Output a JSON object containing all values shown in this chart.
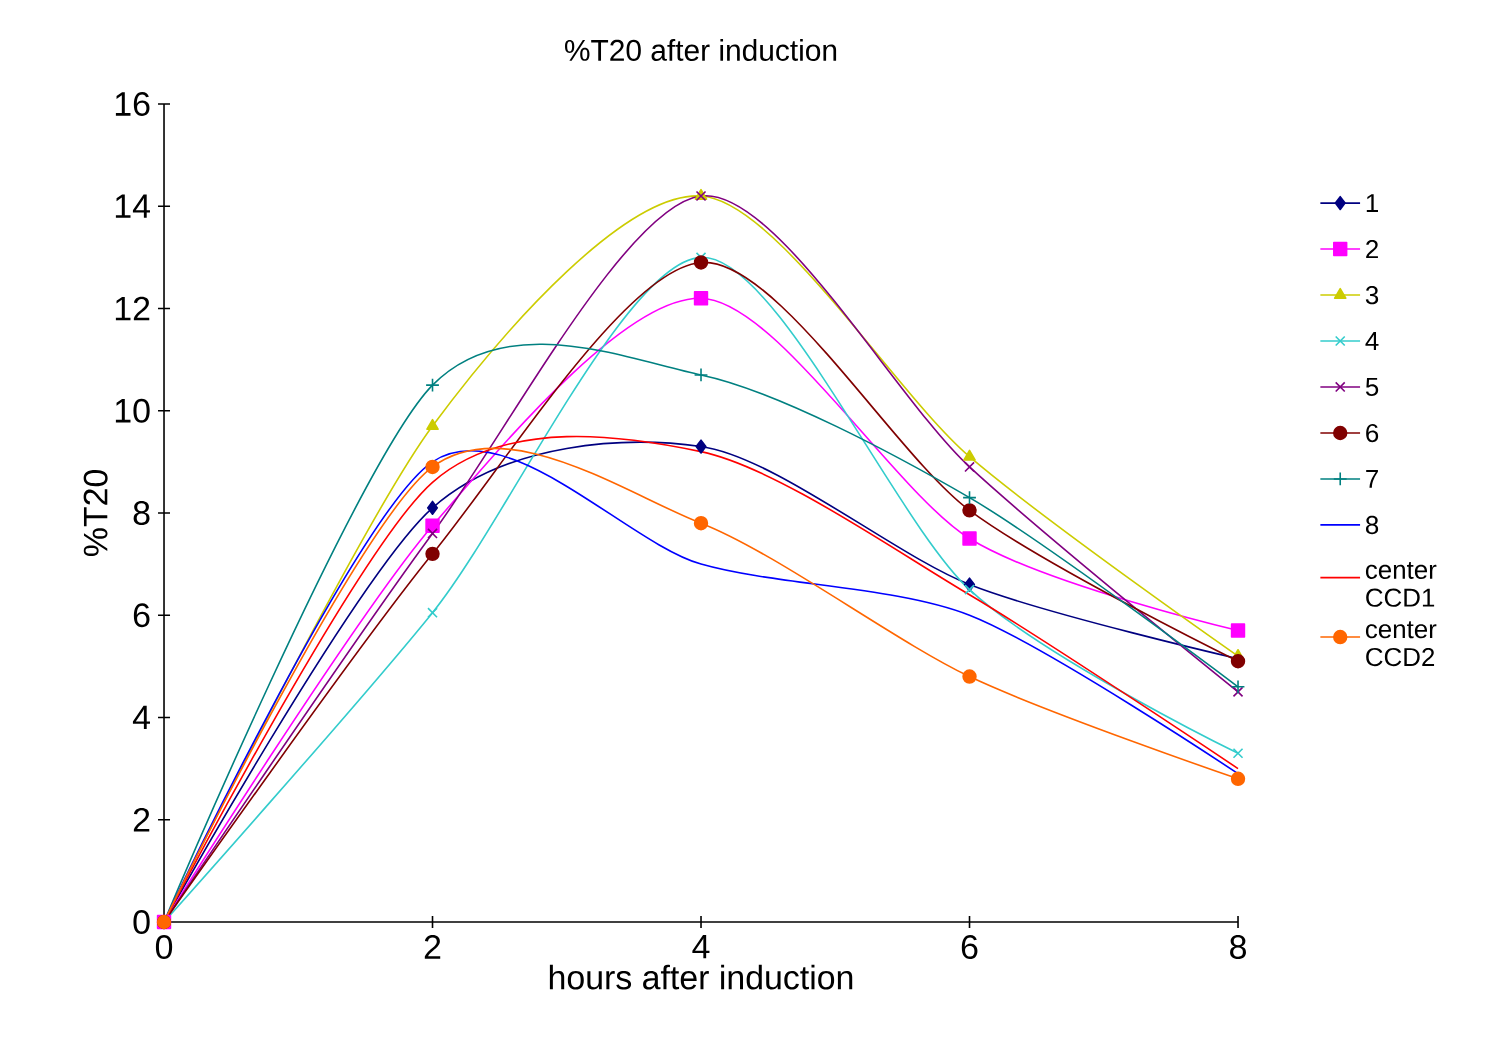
{
  "chart_data": {
    "type": "line",
    "title": "%T20 after induction",
    "xlabel": "hours after induction",
    "ylabel": "%T20",
    "x": [
      0,
      2,
      4,
      6,
      8
    ],
    "xlim": [
      0,
      8
    ],
    "xticks": [
      0,
      2,
      4,
      6,
      8
    ],
    "ylim": [
      0,
      16
    ],
    "yticks": [
      0,
      2,
      4,
      6,
      8,
      10,
      12,
      14,
      16
    ],
    "legend": "right",
    "grid": false,
    "line_style": "solid",
    "series": [
      {
        "name": "1",
        "color": "#000080",
        "marker": "diamond",
        "values": [
          0,
          8.1,
          9.3,
          6.6,
          5.15
        ]
      },
      {
        "name": "2",
        "color": "#ff00ff",
        "marker": "square",
        "values": [
          0,
          7.75,
          12.2,
          7.5,
          5.7
        ]
      },
      {
        "name": "3",
        "color": "#cccc00",
        "marker": "triangle",
        "values": [
          0,
          9.7,
          14.2,
          9.1,
          5.2
        ]
      },
      {
        "name": "4",
        "color": "#33cccc",
        "marker": "cross",
        "values": [
          0,
          6.05,
          13.0,
          6.5,
          3.3
        ]
      },
      {
        "name": "5",
        "color": "#800080",
        "marker": "cross",
        "values": [
          0,
          7.6,
          14.2,
          8.9,
          4.5
        ]
      },
      {
        "name": "6",
        "color": "#800000",
        "marker": "circle",
        "values": [
          0,
          7.2,
          12.9,
          8.05,
          5.1
        ]
      },
      {
        "name": "7",
        "color": "#008080",
        "marker": "plus",
        "values": [
          0,
          10.5,
          10.7,
          8.3,
          4.6
        ]
      },
      {
        "name": "8",
        "color": "#0000ff",
        "marker": "none",
        "values": [
          0,
          9.0,
          7.0,
          6.0,
          2.9
        ]
      },
      {
        "name": "center CCD1",
        "color": "#ff0000",
        "marker": "none",
        "values": [
          0,
          8.6,
          9.2,
          6.4,
          3.0
        ]
      },
      {
        "name": "center CCD2",
        "color": "#ff6600",
        "marker": "circle",
        "values": [
          0,
          8.9,
          7.8,
          4.8,
          2.8
        ]
      }
    ]
  }
}
